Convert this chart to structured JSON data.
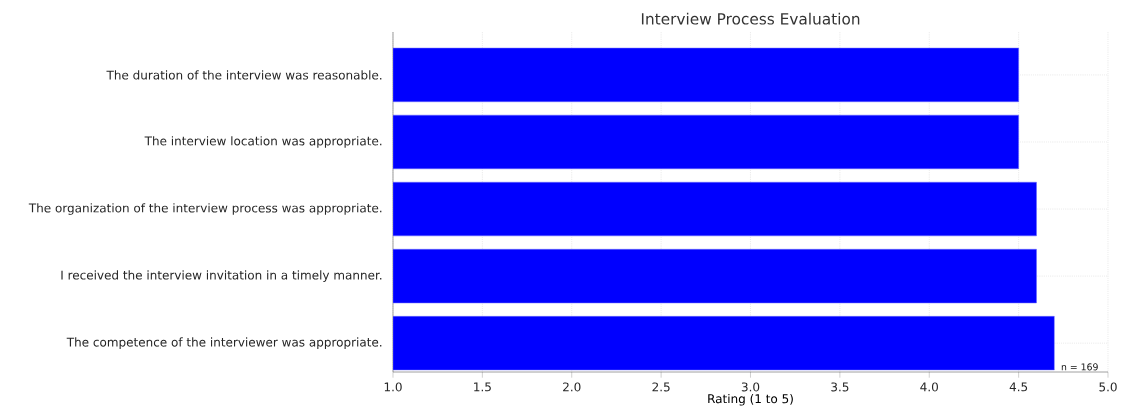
{
  "chart_data": {
    "type": "bar",
    "orientation": "horizontal",
    "title": "Interview Process Evaluation",
    "xlabel": "Rating (1 to 5)",
    "categories": [
      "The duration of the interview was reasonable.",
      "The interview location was appropriate.",
      "The organization of the interview process was appropriate.",
      "I received the interview invitation in a timely manner.",
      "The competence of the interviewer was appropriate."
    ],
    "values": [
      4.5,
      4.5,
      4.6,
      4.6,
      4.7
    ],
    "color": "#0000ff",
    "xlim": [
      1.0,
      5.0
    ],
    "xticks": [
      {
        "value": 1.0,
        "label": "1.0"
      },
      {
        "value": 1.5,
        "label": "1.5"
      },
      {
        "value": 2.0,
        "label": "2.0"
      },
      {
        "value": 2.5,
        "label": "2.5"
      },
      {
        "value": 3.0,
        "label": "3.0"
      },
      {
        "value": 3.5,
        "label": "3.5"
      },
      {
        "value": 4.0,
        "label": "4.0"
      },
      {
        "value": 4.5,
        "label": "4.5"
      },
      {
        "value": 5.0,
        "label": "5.0"
      }
    ],
    "grid": true,
    "annotations": [
      "n = 169"
    ]
  }
}
